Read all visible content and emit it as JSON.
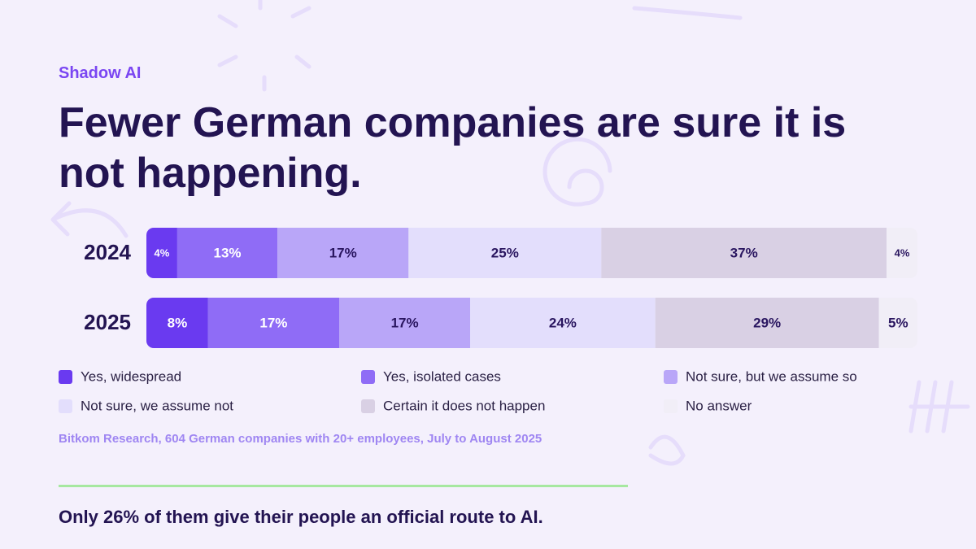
{
  "chart_data": {
    "type": "stacked-bar",
    "eyebrow": "Shadow AI",
    "title": "Fewer German companies are sure it is not happening.",
    "categories": [
      "2024",
      "2025"
    ],
    "series": [
      {
        "name": "Yes, widespread",
        "color": "#6a3af0",
        "values": [
          4,
          8
        ],
        "value_labels": [
          "4%",
          "8%"
        ]
      },
      {
        "name": "Yes, isolated cases",
        "color": "#8f6cf6",
        "values": [
          13,
          17
        ],
        "value_labels": [
          "13%",
          "17%"
        ]
      },
      {
        "name": "Not sure, but we assume so",
        "color": "#b9a6f8",
        "values": [
          17,
          17
        ],
        "value_labels": [
          "17%",
          "17%"
        ]
      },
      {
        "name": "Not sure, we assume not",
        "color": "#e3defc",
        "values": [
          25,
          24
        ],
        "value_labels": [
          "25%",
          "24%"
        ]
      },
      {
        "name": "Certain it does not happen",
        "color": "#d9d0e4",
        "values": [
          37,
          29
        ],
        "value_labels": [
          "37%",
          "29%"
        ]
      },
      {
        "name": "No answer",
        "color": "#f1eef7",
        "values": [
          4,
          5
        ],
        "value_labels": [
          "4%",
          "5%"
        ]
      }
    ],
    "source": "Bitkom Research, 604 German companies with 20+ employees, July to August 2025",
    "footer": "Only 26% of them give their people an official route to AI."
  }
}
